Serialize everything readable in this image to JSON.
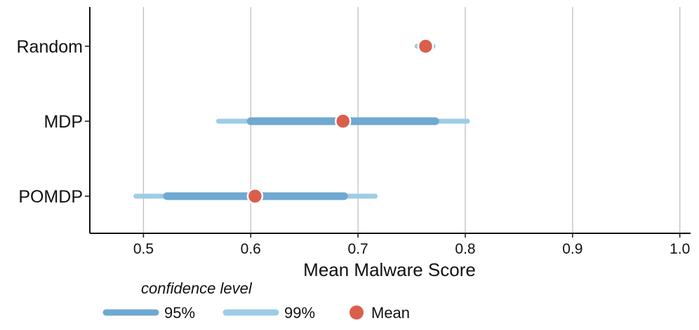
{
  "chart_data": {
    "type": "interval",
    "orientation": "horizontal",
    "xlabel": "Mean Malware Score",
    "xlim": [
      0.45,
      1.01
    ],
    "xticks": [
      0.5,
      0.6,
      0.7,
      0.8,
      0.9,
      1.0
    ],
    "xtick_labels": [
      "0.5",
      "0.6",
      "0.7",
      "0.8",
      "0.9",
      "1.0"
    ],
    "grid": "vertical",
    "categories": [
      "Random",
      "MDP",
      "POMDP"
    ],
    "series": [
      {
        "name": "Random",
        "mean": 0.763,
        "ci95": [
          0.76,
          0.767
        ],
        "ci99": [
          0.755,
          0.77
        ]
      },
      {
        "name": "MDP",
        "mean": 0.686,
        "ci95": [
          0.6,
          0.772
        ],
        "ci99": [
          0.57,
          0.802
        ]
      },
      {
        "name": "POMDP",
        "mean": 0.604,
        "ci95": [
          0.522,
          0.687
        ],
        "ci99": [
          0.493,
          0.716
        ]
      }
    ],
    "legend": {
      "title": "confidence level",
      "placement": "bottom-left",
      "entries": [
        {
          "label": "95%",
          "kind": "line",
          "color": "#6fa8d1"
        },
        {
          "label": "99%",
          "kind": "line",
          "color": "#9dcce6"
        },
        {
          "label": "Mean",
          "kind": "dot",
          "color": "#d95f4c"
        }
      ]
    },
    "colors": {
      "ci95": "#6fa8d1",
      "ci99": "#9dcce6",
      "mean": "#d95f4c",
      "grid": "#c0c0c0",
      "axis": "#111111"
    }
  }
}
